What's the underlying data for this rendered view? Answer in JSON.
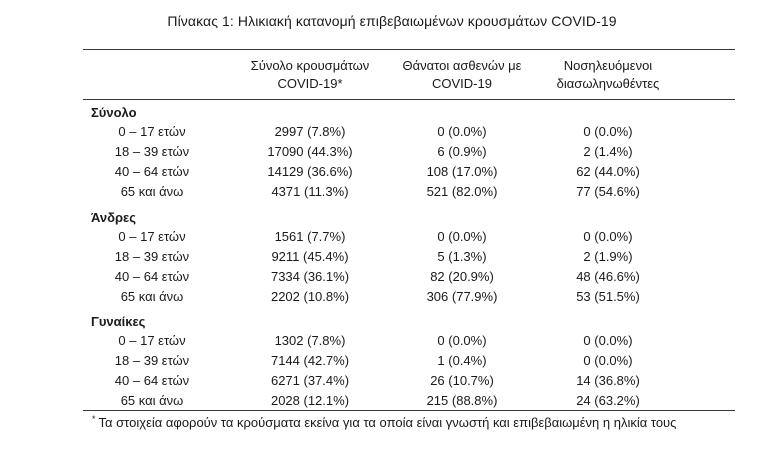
{
  "title": "Πίνακας 1: Ηλικιακή κατανομή επιβεβαιωμένων κρουσμάτων COVID-19",
  "columns": [
    {
      "line1": "Σύνολο κρουσμάτων",
      "line2": "COVID-19*"
    },
    {
      "line1": "Θάνατοι ασθενών με",
      "line2": "COVID-19"
    },
    {
      "line1": "Νοσηλευόμενοι",
      "line2": "διασωληνωθέντες"
    }
  ],
  "groups": [
    {
      "label": "Σύνολο",
      "rows": [
        {
          "age": "0 – 17 ετών",
          "cases": "2997 (7.8%)",
          "deaths": "0 (0.0%)",
          "intubated": "0 (0.0%)"
        },
        {
          "age": "18 – 39 ετών",
          "cases": "17090 (44.3%)",
          "deaths": "6 (0.9%)",
          "intubated": "2 (1.4%)"
        },
        {
          "age": "40 – 64 ετών",
          "cases": "14129 (36.6%)",
          "deaths": "108 (17.0%)",
          "intubated": "62 (44.0%)"
        },
        {
          "age": "65 και άνω",
          "cases": "4371 (11.3%)",
          "deaths": "521 (82.0%)",
          "intubated": "77 (54.6%)"
        }
      ]
    },
    {
      "label": "Άνδρες",
      "rows": [
        {
          "age": "0 – 17 ετών",
          "cases": "1561 (7.7%)",
          "deaths": "0 (0.0%)",
          "intubated": "0 (0.0%)"
        },
        {
          "age": "18 – 39 ετών",
          "cases": "9211 (45.4%)",
          "deaths": "5 (1.3%)",
          "intubated": "2 (1.9%)"
        },
        {
          "age": "40 – 64 ετών",
          "cases": "7334 (36.1%)",
          "deaths": "82 (20.9%)",
          "intubated": "48 (46.6%)"
        },
        {
          "age": "65 και άνω",
          "cases": "2202 (10.8%)",
          "deaths": "306 (77.9%)",
          "intubated": "53 (51.5%)"
        }
      ]
    },
    {
      "label": "Γυναίκες",
      "rows": [
        {
          "age": "0 – 17 ετών",
          "cases": "1302 (7.8%)",
          "deaths": "0 (0.0%)",
          "intubated": "0 (0.0%)"
        },
        {
          "age": "18 – 39 ετών",
          "cases": "7144 (42.7%)",
          "deaths": "1 (0.4%)",
          "intubated": "0 (0.0%)"
        },
        {
          "age": "40 – 64 ετών",
          "cases": "6271 (37.4%)",
          "deaths": "26 (10.7%)",
          "intubated": "14 (36.8%)"
        },
        {
          "age": "65 και άνω",
          "cases": "2028 (12.1%)",
          "deaths": "215 (88.8%)",
          "intubated": "24 (63.2%)"
        }
      ]
    }
  ],
  "footnote": {
    "marker": "*",
    "text": "Τα στοιχεία αφορούν τα κρούσματα εκείνα για τα οποία είναι γνωστή και επιβεβαιωμένη η ηλικία τους"
  }
}
